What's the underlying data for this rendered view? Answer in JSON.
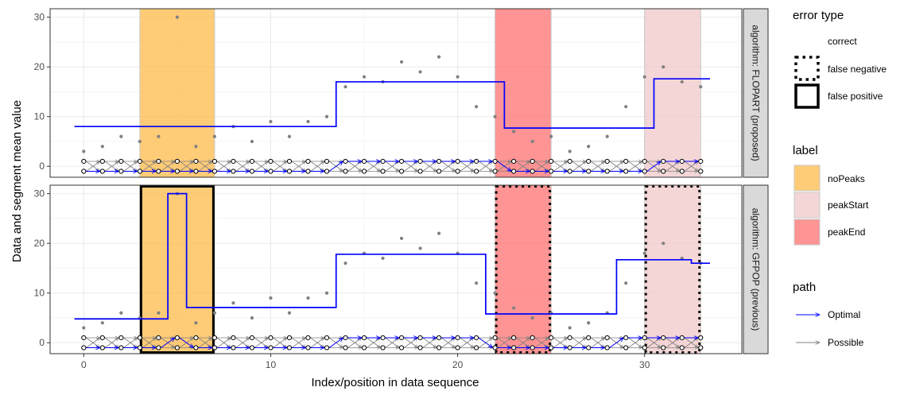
{
  "chart_data": {
    "type": "line",
    "xlabel": "Index/position in data sequence",
    "ylabel": "Data and segment mean value",
    "xlim": [
      -1.8,
      35.2
    ],
    "ylim": [
      -2.2,
      31.7
    ],
    "x_ticks": [
      0,
      10,
      20,
      30
    ],
    "y_ticks": [
      0,
      10,
      20,
      30
    ],
    "grid": true,
    "data_points": {
      "x": [
        0,
        1,
        2,
        3,
        4,
        5,
        6,
        7,
        8,
        9,
        10,
        11,
        12,
        13,
        14,
        15,
        16,
        17,
        18,
        19,
        20,
        21,
        22,
        23,
        24,
        25,
        26,
        27,
        28,
        29,
        30,
        31,
        32,
        33
      ],
      "y": [
        3,
        4,
        6,
        5,
        6,
        30,
        4,
        6,
        8,
        5,
        9,
        6,
        9,
        10,
        16,
        18,
        17,
        21,
        19,
        22,
        18,
        12,
        10,
        7,
        5,
        6,
        3,
        4,
        6,
        12,
        18,
        20,
        17,
        16
      ]
    },
    "panels": [
      {
        "strip_label": "algorithm: FLOPART (proposed)",
        "label_regions": [
          {
            "label": "noPeaks",
            "x": [
              3,
              7
            ],
            "error": "correct"
          },
          {
            "label": "peakEnd",
            "x": [
              22,
              25
            ],
            "error": "correct"
          },
          {
            "label": "peakStart",
            "x": [
              30,
              33
            ],
            "error": "correct"
          }
        ],
        "segments": [
          {
            "x": [
              -0.5,
              13.5
            ],
            "mean": 8.0
          },
          {
            "x": [
              13.5,
              22.5
            ],
            "mean": 17.0
          },
          {
            "x": [
              22.5,
              30.5
            ],
            "mean": 7.7
          },
          {
            "x": [
              30.5,
              33.5
            ],
            "mean": 17.6
          }
        ],
        "optimal_path_states": [
          0,
          0,
          0,
          0,
          0,
          0,
          0,
          0,
          0,
          0,
          0,
          0,
          0,
          0,
          1,
          1,
          1,
          1,
          1,
          1,
          1,
          1,
          1,
          0,
          0,
          0,
          0,
          0,
          0,
          0,
          0,
          1,
          1,
          1
        ]
      },
      {
        "strip_label": "algorithm: GFPOP (previous)",
        "label_regions": [
          {
            "label": "noPeaks",
            "x": [
              3,
              7
            ],
            "error": "false positive"
          },
          {
            "label": "peakEnd",
            "x": [
              22,
              25
            ],
            "error": "false negative"
          },
          {
            "label": "peakStart",
            "x": [
              30,
              33
            ],
            "error": "false negative"
          }
        ],
        "segments": [
          {
            "x": [
              -0.5,
              4.5
            ],
            "mean": 4.8
          },
          {
            "x": [
              4.5,
              5.5
            ],
            "mean": 30.0
          },
          {
            "x": [
              5.5,
              13.5
            ],
            "mean": 7.1
          },
          {
            "x": [
              13.5,
              21.5
            ],
            "mean": 17.8
          },
          {
            "x": [
              21.5,
              28.5
            ],
            "mean": 5.8
          },
          {
            "x": [
              28.5,
              32.5
            ],
            "mean": 16.7
          },
          {
            "x": [
              32.5,
              33.5
            ],
            "mean": 16.0
          }
        ],
        "optimal_path_states": [
          0,
          0,
          0,
          0,
          0,
          1,
          0,
          0,
          0,
          0,
          0,
          0,
          0,
          0,
          1,
          1,
          1,
          1,
          1,
          1,
          1,
          1,
          0,
          0,
          0,
          0,
          0,
          0,
          0,
          1,
          1,
          1,
          1,
          1
        ]
      }
    ],
    "legend": {
      "placement": "right",
      "error_type": {
        "title": "error type",
        "items": [
          "correct",
          "false negative",
          "false positive"
        ]
      },
      "label": {
        "title": "label",
        "items": [
          {
            "name": "noPeaks",
            "color": "#fdb94a"
          },
          {
            "name": "peakStart",
            "color": "#f0c8c8"
          },
          {
            "name": "peakEnd",
            "color": "#fd7070"
          }
        ]
      },
      "path": {
        "title": "path",
        "items": [
          {
            "name": "Optimal",
            "color": "#0000ff"
          },
          {
            "name": "Possible",
            "color": "#808080"
          }
        ]
      }
    },
    "colors": {
      "noPeaks": "#fdb94a",
      "peakStart": "#f0c8c8",
      "peakEnd": "#fd7070",
      "segment_line": "#0000ff",
      "data_point": "#808080",
      "strip_bg": "#d9d9d9"
    }
  }
}
